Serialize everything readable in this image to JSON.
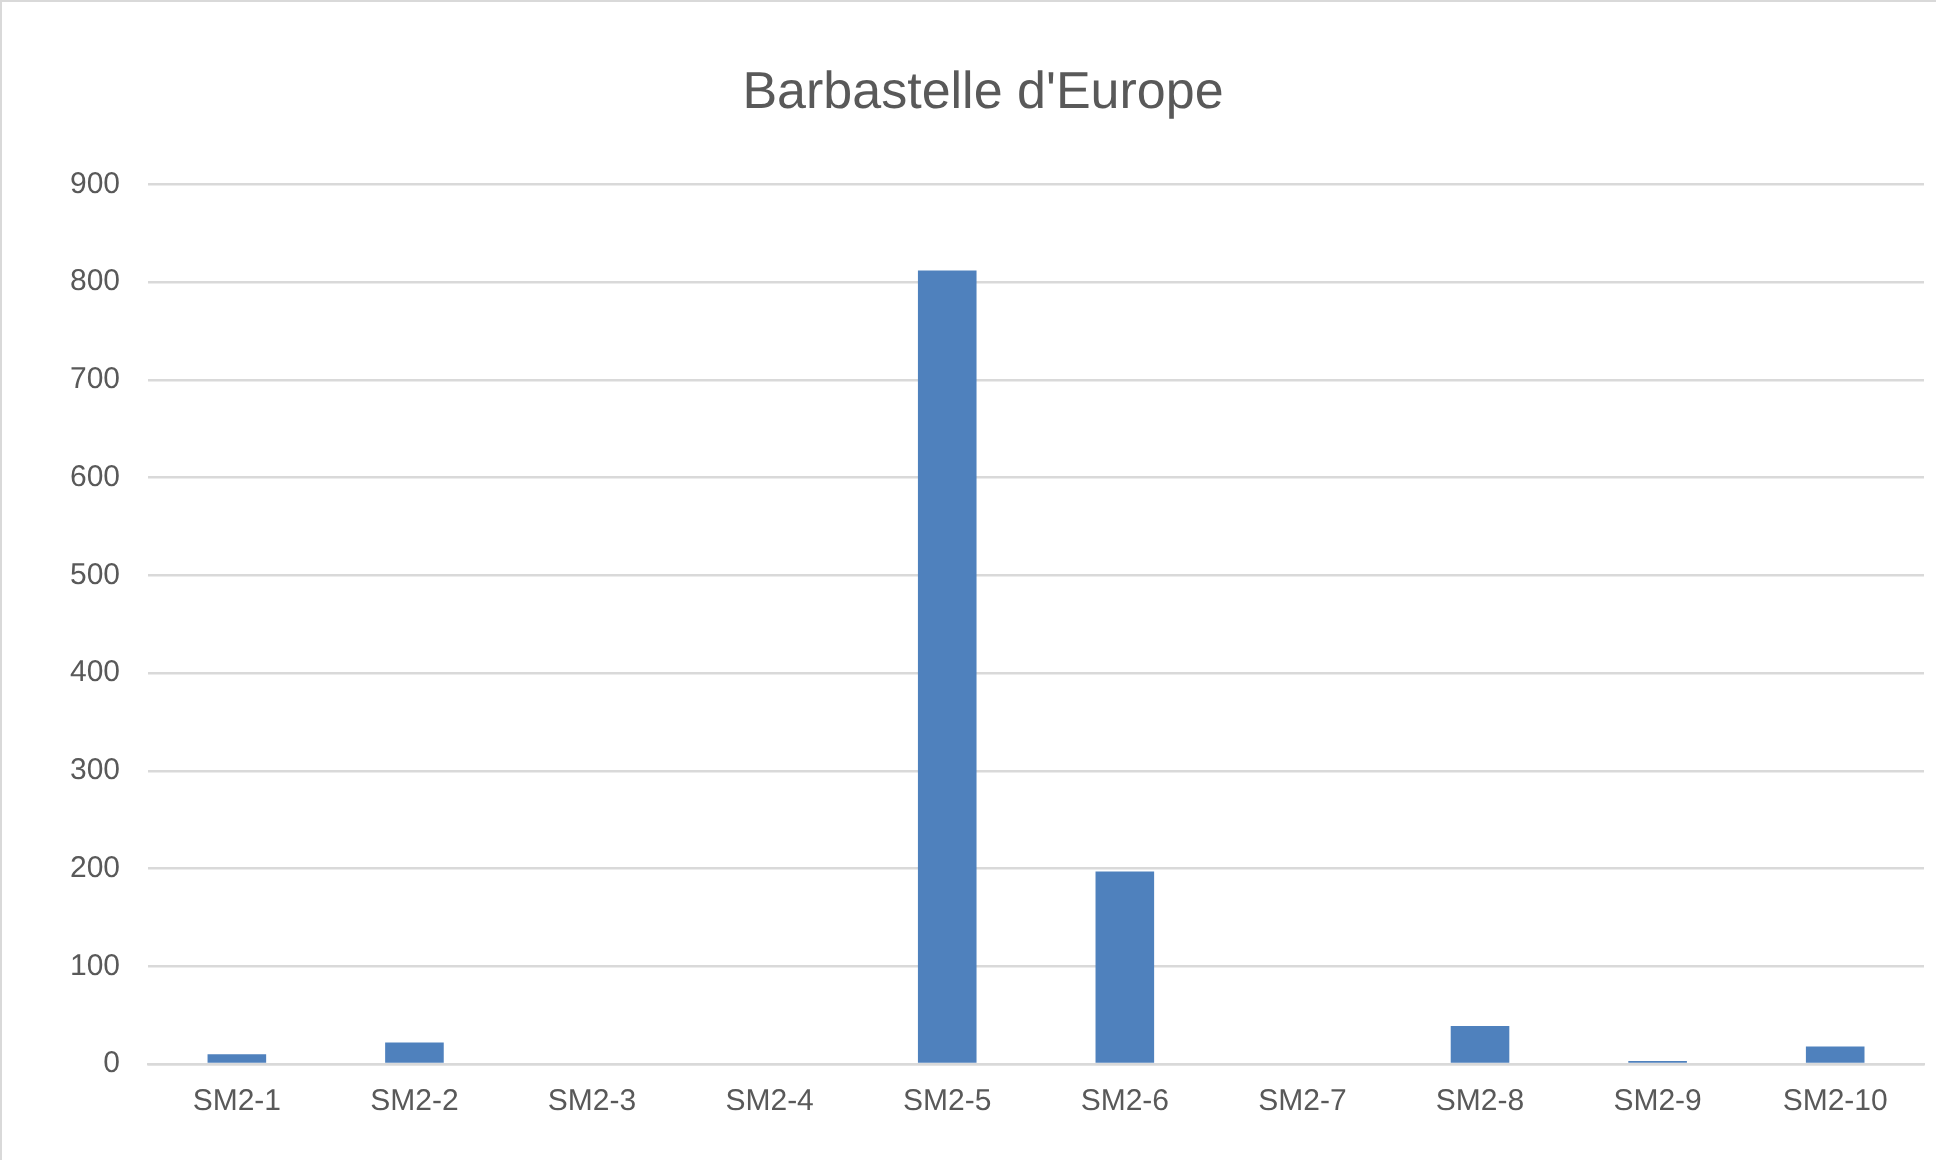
{
  "chart_data": {
    "type": "bar",
    "title": "Barbastelle d'Europe",
    "categories": [
      "SM2-1",
      "SM2-2",
      "SM2-3",
      "SM2-4",
      "SM2-5",
      "SM2-6",
      "SM2-7",
      "SM2-8",
      "SM2-9",
      "SM2-10"
    ],
    "values": [
      10,
      22,
      0,
      0,
      812,
      197,
      0,
      39,
      3,
      18
    ],
    "color": "#4f81bd",
    "ylim": [
      0,
      900
    ],
    "yticks": [
      0,
      100,
      200,
      300,
      400,
      500,
      600,
      700,
      800,
      900
    ],
    "grid": "y",
    "legend": false
  }
}
